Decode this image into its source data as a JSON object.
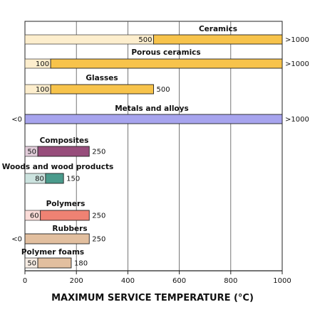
{
  "chart_data": {
    "type": "bar",
    "title": "",
    "xlabel": "MAXIMUM SERVICE TEMPERATURE (°C)",
    "ylabel": "",
    "xlim": [
      0,
      1000
    ],
    "xticks": [
      0,
      200,
      400,
      600,
      800,
      1000
    ],
    "grid": true,
    "colors": {
      "Ceramics": "#f7c34b",
      "Porous ceramics": "#f7c34b",
      "Glasses": "#f7c34b",
      "Metals and alloys": "#a7a4ee",
      "Composites": "#974d7b",
      "Woods and wood products": "#4a9b8c",
      "Polymers": "#ef8273",
      "Rubbers": "#e2bf9f",
      "Polymer foams": "#e2bf9f"
    },
    "categories": [
      {
        "name": "Ceramics",
        "min": 500,
        "max": 1000,
        "min_label": "500",
        "max_label": ">1000"
      },
      {
        "name": "Porous ceramics",
        "min": 100,
        "max": 1000,
        "min_label": "100",
        "max_label": ">1000"
      },
      {
        "name": "Glasses",
        "min": 100,
        "max": 500,
        "min_label": "100",
        "max_label": "500"
      },
      {
        "name": "Metals and alloys",
        "min": 0,
        "max": 1000,
        "min_label": "<0",
        "max_label": ">1000"
      },
      {
        "name": "Composites",
        "min": 50,
        "max": 250,
        "min_label": "50",
        "max_label": "250"
      },
      {
        "name": "Woods and wood products",
        "min": 80,
        "max": 150,
        "min_label": "80",
        "max_label": "150"
      },
      {
        "name": "Polymers",
        "min": 60,
        "max": 250,
        "min_label": "60",
        "max_label": "250"
      },
      {
        "name": "Rubbers",
        "min": 0,
        "max": 250,
        "min_label": "<0",
        "max_label": "250"
      },
      {
        "name": "Polymer foams",
        "min": 50,
        "max": 180,
        "min_label": "50",
        "max_label": "180"
      }
    ]
  }
}
